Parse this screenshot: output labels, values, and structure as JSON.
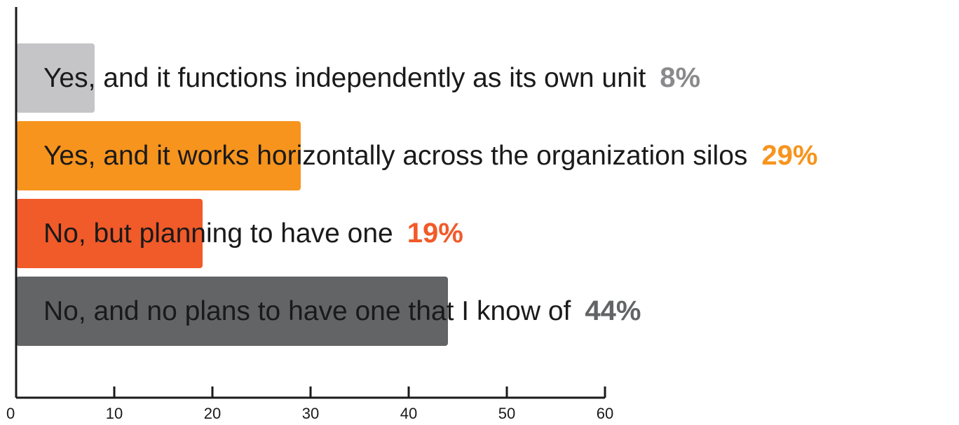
{
  "chart_data": {
    "type": "bar",
    "orientation": "horizontal",
    "categories": [
      "Yes, and it functions independently as its own unit",
      "Yes, and it works horizontally across the organization silos",
      "No, but planning to have one",
      "No, and no plans to have one that I know of"
    ],
    "values": [
      8,
      29,
      19,
      44
    ],
    "value_labels": [
      "8%",
      "29%",
      "19%",
      "44%"
    ],
    "colors": [
      "#c5c5c7",
      "#f7941d",
      "#f15a29",
      "#636466"
    ],
    "label_colors": [
      "#8a8a8c",
      "#f7941d",
      "#f15a29",
      "#636466"
    ],
    "xlim": [
      0,
      60
    ],
    "xticks": [
      0,
      10,
      20,
      30,
      40,
      50,
      60
    ]
  }
}
